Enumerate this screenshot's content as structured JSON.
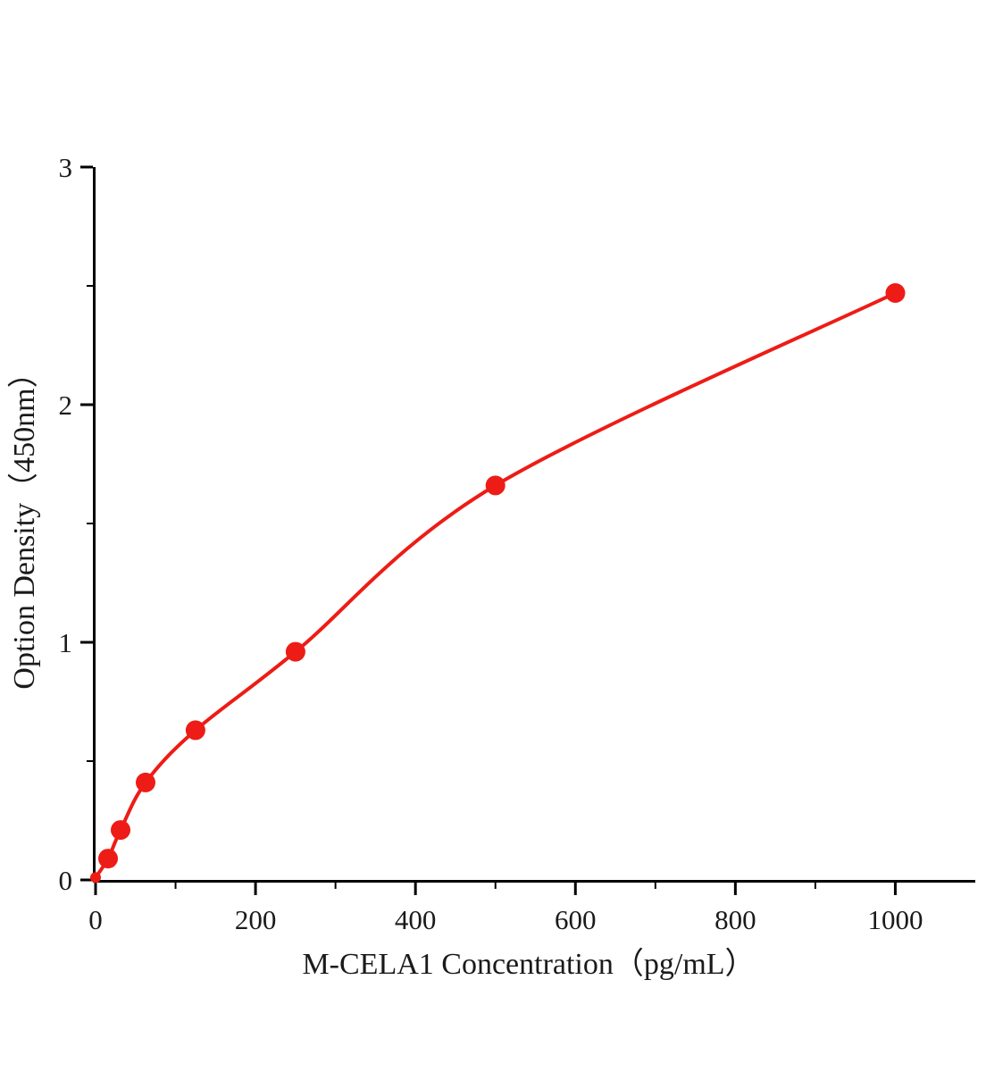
{
  "chart_data": {
    "type": "scatter",
    "title": "",
    "xlabel": "M-CELA1 Concentration（pg/mL）",
    "ylabel": "Option Density（450nm）",
    "x": [
      0,
      15.6,
      31.25,
      62.5,
      125,
      250,
      500,
      1000
    ],
    "y": [
      0.01,
      0.09,
      0.21,
      0.41,
      0.63,
      0.96,
      1.66,
      2.47
    ],
    "xlim": [
      0,
      1100
    ],
    "ylim": [
      0,
      3
    ],
    "x_ticks": [
      0,
      200,
      400,
      600,
      800,
      1000
    ],
    "y_ticks": [
      0,
      1,
      2,
      3
    ],
    "x_minor_step": 100,
    "y_minor_step": 0.5,
    "series_color": "#ed1c16",
    "axis_color": "#000000",
    "fit_type": "smooth saturation curve through data points",
    "legend": "none",
    "grid": false
  }
}
